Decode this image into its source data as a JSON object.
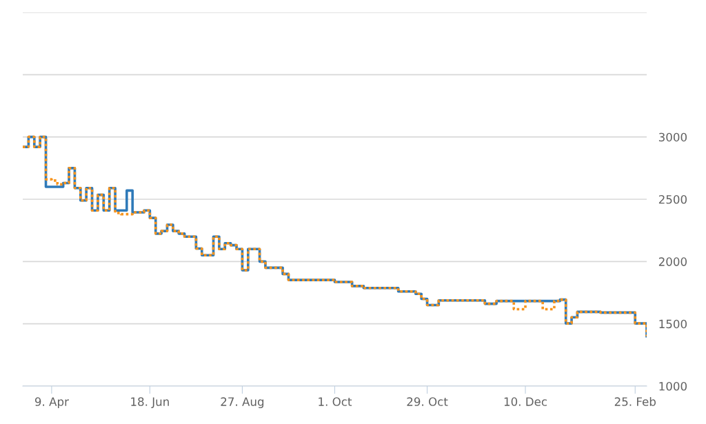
{
  "chart_data": {
    "type": "step",
    "categories": [
      null,
      null,
      null,
      null,
      null,
      "9. Apr",
      null,
      null,
      null,
      null,
      null,
      null,
      null,
      null,
      null,
      null,
      null,
      null,
      null,
      null,
      null,
      null,
      "18. Jun",
      null,
      null,
      null,
      null,
      null,
      null,
      null,
      null,
      null,
      null,
      null,
      null,
      null,
      null,
      null,
      "27. Aug",
      null,
      null,
      null,
      null,
      null,
      null,
      null,
      null,
      null,
      null,
      null,
      null,
      null,
      null,
      null,
      "1. Oct",
      null,
      null,
      null,
      null,
      null,
      null,
      null,
      null,
      null,
      null,
      null,
      null,
      null,
      null,
      null,
      "29. Oct",
      null,
      null,
      null,
      null,
      null,
      null,
      null,
      null,
      null,
      null,
      null,
      null,
      null,
      null,
      null,
      null,
      "10. Dec",
      null,
      null,
      null,
      null,
      null,
      null,
      null,
      null,
      null,
      null,
      null,
      null,
      null,
      null,
      null,
      null,
      null,
      null,
      "25. Feb",
      null,
      null
    ],
    "series": [
      {
        "color": "#2f7ab9",
        "line_style": "solid",
        "values": [
          2920,
          3000,
          2920,
          3000,
          2600,
          2600,
          2600,
          2630,
          2750,
          2590,
          2490,
          2590,
          2410,
          2535,
          2410,
          2590,
          2410,
          2410,
          2570,
          2395,
          2395,
          2410,
          2350,
          2224,
          2245,
          2295,
          2245,
          2224,
          2200,
          2200,
          2104,
          2050,
          2050,
          2200,
          2100,
          2147,
          2131,
          2100,
          1930,
          2100,
          2100,
          2000,
          1950,
          1950,
          1950,
          1900,
          1852,
          1852,
          1852,
          1852,
          1852,
          1852,
          1852,
          1852,
          1836,
          1836,
          1836,
          1803,
          1803,
          1787,
          1787,
          1787,
          1787,
          1787,
          1787,
          1760,
          1760,
          1760,
          1740,
          1700,
          1650,
          1650,
          1688,
          1688,
          1688,
          1688,
          1688,
          1688,
          1688,
          1688,
          1661,
          1661,
          1683,
          1683,
          1683,
          1683,
          1683,
          1683,
          1683,
          1683,
          1683,
          1683,
          1683,
          1694,
          1503,
          1552,
          1596,
          1596,
          1596,
          1596,
          1590,
          1590,
          1590,
          1590,
          1590,
          1590,
          1503,
          1503,
          1400
        ]
      },
      {
        "color": "#f7941d",
        "line_style": "dotted",
        "values": [
          2920,
          3000,
          2920,
          3000,
          2660,
          2650,
          2620,
          2630,
          2750,
          2590,
          2490,
          2590,
          2410,
          2535,
          2410,
          2590,
          2390,
          2380,
          2380,
          2395,
          2395,
          2410,
          2350,
          2224,
          2245,
          2295,
          2245,
          2224,
          2200,
          2200,
          2104,
          2050,
          2050,
          2200,
          2100,
          2147,
          2131,
          2100,
          1930,
          2100,
          2100,
          2000,
          1950,
          1950,
          1950,
          1900,
          1852,
          1852,
          1852,
          1852,
          1852,
          1852,
          1852,
          1852,
          1836,
          1836,
          1836,
          1803,
          1803,
          1787,
          1787,
          1787,
          1787,
          1787,
          1787,
          1760,
          1760,
          1760,
          1740,
          1700,
          1650,
          1650,
          1688,
          1688,
          1688,
          1688,
          1688,
          1688,
          1688,
          1688,
          1661,
          1661,
          1683,
          1683,
          1683,
          1617,
          1617,
          1683,
          1683,
          1683,
          1617,
          1617,
          1683,
          1694,
          1503,
          1552,
          1596,
          1596,
          1596,
          1596,
          1590,
          1590,
          1590,
          1590,
          1590,
          1590,
          1503,
          1503,
          1400
        ]
      }
    ],
    "ylim": [
      1000,
      4000
    ],
    "yticks": [
      1000,
      1500,
      2000,
      2500,
      3000,
      {
        "value": 3500,
        "label": null
      },
      {
        "value": 4000,
        "label": null
      }
    ],
    "grid": "y"
  }
}
